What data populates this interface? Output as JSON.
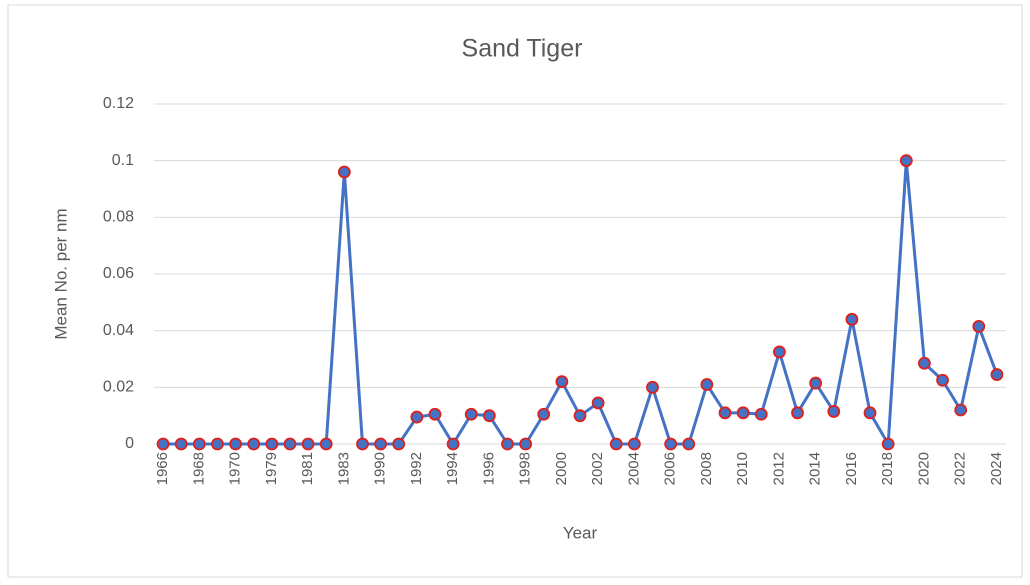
{
  "chart_data": {
    "type": "line",
    "title": "Sand Tiger",
    "x_label": "Year",
    "y_label": "Mean No. per nm",
    "categories": [
      "1966",
      null,
      "1968",
      null,
      "1970",
      null,
      "1979",
      null,
      "1981",
      null,
      "1983",
      null,
      "1990",
      null,
      "1992",
      null,
      "1994",
      null,
      "1996",
      null,
      "1998",
      null,
      "2000",
      null,
      "2002",
      null,
      "2004",
      null,
      "2006",
      null,
      "2008",
      null,
      "2010",
      null,
      "2012",
      null,
      "2014",
      null,
      "2016",
      null,
      "2018",
      null,
      "2020",
      null,
      "2022",
      null,
      "2024"
    ],
    "series": [
      {
        "name": "Sand Tiger",
        "color": "#4472c4",
        "marker_edge": "#e0201b",
        "values": [
          0,
          0,
          0,
          0,
          0,
          0,
          0,
          0,
          0,
          0,
          0.096,
          0,
          0,
          0,
          0.0095,
          0.0105,
          0,
          0.0105,
          0.01,
          0,
          0,
          0.0105,
          0.022,
          0.01,
          0.0145,
          0,
          0,
          0.02,
          0,
          0,
          0.021,
          0.011,
          0.011,
          0.0105,
          0.0325,
          0.011,
          0.0215,
          0.0115,
          0.044,
          0.011,
          0,
          0.1,
          0.0285,
          0.0225,
          0.012,
          0.0415,
          0.0245
        ]
      }
    ],
    "ylim": [
      0,
      0.12
    ],
    "yticks": [
      0,
      0.02,
      0.04,
      0.06,
      0.08,
      0.1,
      0.12
    ],
    "grid": true
  }
}
